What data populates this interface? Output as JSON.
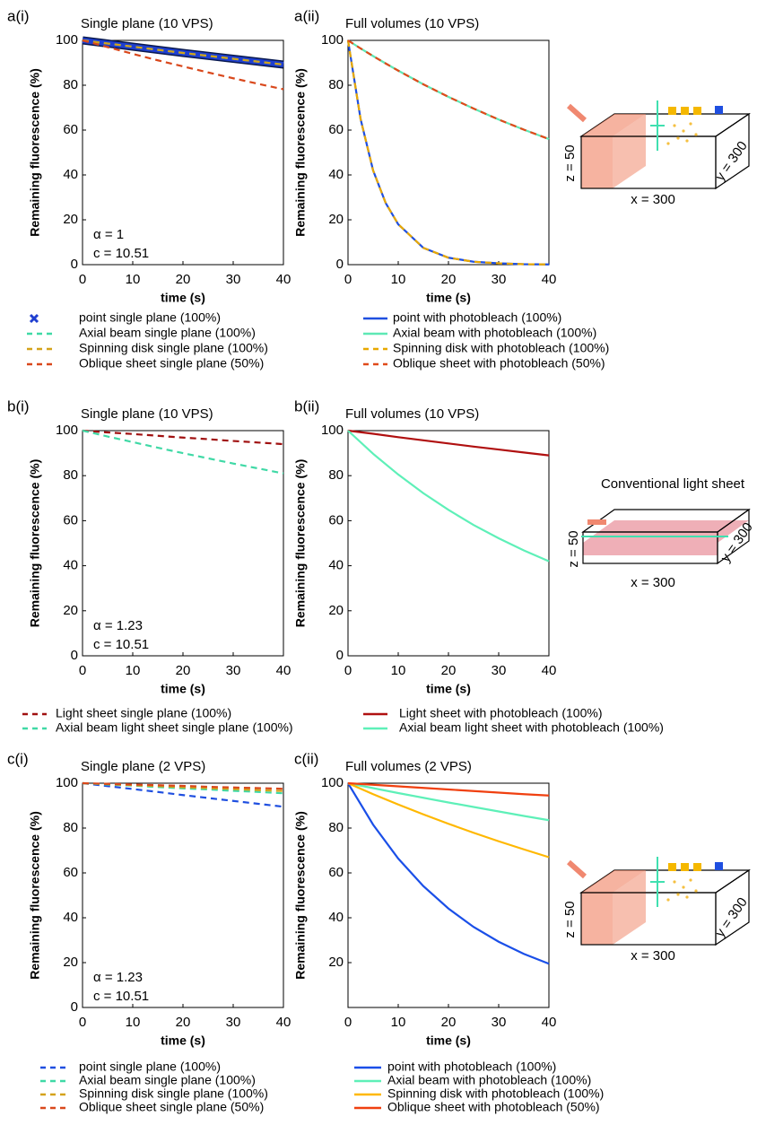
{
  "chart_data": [
    {
      "type": "line",
      "panel": "a(i)",
      "title": "Single plane (10 VPS)",
      "xlabel": "time (s)",
      "ylabel": "Remaining fluorescence (%)",
      "annotations": [
        "α = 1",
        "c = 10.51"
      ],
      "x": [
        0,
        5,
        10,
        15,
        20,
        25,
        30,
        35,
        40
      ],
      "xlim": [
        0,
        40
      ],
      "ylim": [
        0,
        100
      ],
      "xticks": [
        0,
        10,
        20,
        30,
        40
      ],
      "yticks": [
        0,
        20,
        40,
        60,
        80,
        100
      ],
      "series": [
        {
          "name": "point single plane (100%)",
          "color": "#1f3fd0",
          "linestyle": "solid",
          "marker": "x",
          "values": [
            100,
            98.6,
            97.2,
            95.8,
            94.4,
            93.1,
            91.8,
            90.5,
            89.2
          ]
        },
        {
          "name": "Axial beam single plane (100%)",
          "color": "#3fd9a6",
          "linestyle": "dashed",
          "values": [
            100,
            98.6,
            97.2,
            95.8,
            94.4,
            93.1,
            91.8,
            90.5,
            89.2
          ]
        },
        {
          "name": "Spinning disk single plane (100%)",
          "color": "#d4a21a",
          "linestyle": "dashed",
          "values": [
            100,
            98.6,
            97.2,
            95.8,
            94.4,
            93.1,
            91.8,
            90.5,
            89.2
          ]
        },
        {
          "name": "Oblique sheet single plane (50%)",
          "color": "#d9481c",
          "linestyle": "dashed",
          "values": [
            100,
            97,
            94,
            91.1,
            88.4,
            85.7,
            83.1,
            80.6,
            78.2
          ]
        }
      ]
    },
    {
      "type": "line",
      "panel": "a(ii)",
      "title": "Full volumes (10 VPS)",
      "xlabel": "time (s)",
      "ylabel": "Remaining fluorescence (%)",
      "x": [
        0,
        2.5,
        5,
        7.5,
        10,
        15,
        20,
        25,
        30,
        35,
        40
      ],
      "xlim": [
        0,
        40
      ],
      "ylim": [
        0,
        100
      ],
      "xticks": [
        0,
        10,
        20,
        30,
        40
      ],
      "yticks": [
        0,
        20,
        40,
        60,
        80,
        100
      ],
      "series": [
        {
          "name": "point with photobleach (100%)",
          "color": "#1f4fe0",
          "linestyle": "solid",
          "values": [
            100,
            65,
            42,
            27.5,
            18,
            7.5,
            3.1,
            1.3,
            0.6,
            0.2,
            0.1
          ]
        },
        {
          "name": "Axial beam with photobleach (100%)",
          "color": "#5de8b5",
          "linestyle": "solid",
          "values": [
            100,
            96.4,
            93,
            89.7,
            86.5,
            80.4,
            74.8,
            69.6,
            64.7,
            60.2,
            56
          ]
        },
        {
          "name": "Spinning disk with photobleach (100%)",
          "color": "#e8a800",
          "linestyle": "dashed",
          "values": [
            100,
            65,
            42,
            27.5,
            18,
            7.5,
            3.1,
            1.3,
            0.6,
            0.2,
            0.1
          ]
        },
        {
          "name": "Oblique sheet with photobleach (50%)",
          "color": "#e04a1a",
          "linestyle": "dashed",
          "values": [
            100,
            96.4,
            93,
            89.7,
            86.5,
            80.4,
            74.8,
            69.6,
            64.7,
            60.2,
            56
          ]
        }
      ]
    },
    {
      "type": "line",
      "panel": "b(i)",
      "title": "Single plane (10 VPS)",
      "xlabel": "time (s)",
      "ylabel": "Remaining fluorescence (%)",
      "annotations": [
        "α = 1.23",
        "c = 10.51"
      ],
      "x": [
        0,
        5,
        10,
        15,
        20,
        25,
        30,
        35,
        40
      ],
      "xlim": [
        0,
        40
      ],
      "ylim": [
        0,
        100
      ],
      "xticks": [
        0,
        10,
        20,
        30,
        40
      ],
      "yticks": [
        0,
        20,
        40,
        60,
        80,
        100
      ],
      "series": [
        {
          "name": "Light sheet single plane (100%)",
          "color": "#a01010",
          "linestyle": "dashed",
          "values": [
            100,
            99.2,
            98.5,
            97.7,
            96.9,
            96.2,
            95.4,
            94.7,
            94
          ]
        },
        {
          "name": "Axial beam light sheet single plane (100%)",
          "color": "#40d9a6",
          "linestyle": "dashed",
          "values": [
            100,
            97.4,
            94.9,
            92.4,
            90,
            87.7,
            85.4,
            83.2,
            81
          ]
        }
      ]
    },
    {
      "type": "line",
      "panel": "b(ii)",
      "title": "Full volumes (10 VPS)",
      "xlabel": "time (s)",
      "ylabel": "Remaining fluorescence (%)",
      "x": [
        0,
        5,
        10,
        15,
        20,
        25,
        30,
        35,
        40
      ],
      "xlim": [
        0,
        40
      ],
      "ylim": [
        0,
        100
      ],
      "xticks": [
        0,
        10,
        20,
        30,
        40
      ],
      "yticks": [
        0,
        20,
        40,
        60,
        80,
        100
      ],
      "series": [
        {
          "name": "Light sheet with photobleach (100%)",
          "color": "#b01010",
          "linestyle": "solid",
          "values": [
            100,
            98.6,
            97.1,
            95.7,
            94.3,
            92.9,
            91.6,
            90.3,
            89
          ]
        },
        {
          "name": "Axial beam light sheet with photobleach (100%)",
          "color": "#5ef0b8",
          "linestyle": "solid",
          "values": [
            100,
            89.7,
            80.5,
            72.2,
            64.8,
            58.1,
            52.2,
            46.8,
            42
          ]
        }
      ]
    },
    {
      "type": "line",
      "panel": "c(i)",
      "title": "Single plane (2 VPS)",
      "xlabel": "time (s)",
      "ylabel": "Remaining fluorescence (%)",
      "annotations": [
        "α = 1.23",
        "c = 10.51"
      ],
      "x": [
        0,
        5,
        10,
        15,
        20,
        25,
        30,
        35,
        40
      ],
      "xlim": [
        0,
        40
      ],
      "ylim": [
        0,
        100
      ],
      "xticks": [
        0,
        10,
        20,
        30,
        40
      ],
      "yticks": [
        0,
        20,
        40,
        60,
        80,
        100
      ],
      "series": [
        {
          "name": "point single plane (100%)",
          "color": "#1f4fe0",
          "linestyle": "dashed",
          "values": [
            100,
            98.7,
            97.4,
            96.1,
            94.7,
            93.4,
            92.1,
            90.8,
            89.5
          ]
        },
        {
          "name": "Axial beam single plane (100%)",
          "color": "#3fd9a6",
          "linestyle": "dashed",
          "values": [
            100,
            99.4,
            98.9,
            98.3,
            97.7,
            97.2,
            96.6,
            96.1,
            95.5
          ]
        },
        {
          "name": "Spinning disk single plane (100%)",
          "color": "#d4a21a",
          "linestyle": "dashed",
          "values": [
            100,
            99.6,
            99.1,
            98.7,
            98.2,
            97.8,
            97.4,
            96.9,
            96.5
          ]
        },
        {
          "name": "Oblique sheet single plane (50%)",
          "color": "#d9481c",
          "linestyle": "dashed",
          "values": [
            100,
            99.7,
            99.4,
            99.1,
            98.8,
            98.4,
            98.1,
            97.8,
            97.5
          ]
        }
      ]
    },
    {
      "type": "line",
      "panel": "c(ii)",
      "title": "Full volumes (2 VPS)",
      "xlabel": "time (s)",
      "ylabel": "Remaining fluorescence (%)",
      "x": [
        0,
        5,
        10,
        15,
        20,
        25,
        30,
        35,
        40
      ],
      "xlim": [
        0,
        40
      ],
      "ylim": [
        0,
        100
      ],
      "xticks": [
        0,
        10,
        20,
        30,
        40
      ],
      "yticks": [
        20,
        40,
        60,
        80,
        100
      ],
      "series": [
        {
          "name": "point with photobleach (100%)",
          "color": "#1a4fe8",
          "linestyle": "solid",
          "values": [
            100,
            81.5,
            66.4,
            54.1,
            44.1,
            35.9,
            29.3,
            23.9,
            19.5
          ]
        },
        {
          "name": "Axial beam with photobleach (100%)",
          "color": "#5ef0b8",
          "linestyle": "solid",
          "values": [
            100,
            97.8,
            95.6,
            93.5,
            91.4,
            89.4,
            87.4,
            85.4,
            83.5
          ]
        },
        {
          "name": "Spinning disk with photobleach (100%)",
          "color": "#ffb800",
          "linestyle": "solid",
          "values": [
            100,
            95.1,
            90.5,
            86.1,
            81.9,
            77.9,
            74.1,
            70.5,
            67
          ]
        },
        {
          "name": "Oblique sheet with photobleach (50%)",
          "color": "#f04010",
          "linestyle": "solid",
          "values": [
            100,
            99.3,
            98.6,
            97.9,
            97.2,
            96.5,
            95.8,
            95.1,
            94.5
          ]
        }
      ]
    }
  ],
  "diagrams": [
    {
      "z": "z = 50",
      "x": "x = 300",
      "y": "y = 300"
    },
    {
      "title": "Conventional light sheet",
      "z": "z = 50",
      "x": "x = 300",
      "y": "y = 300"
    },
    {
      "z": "z = 50",
      "x": "x = 300",
      "y": "y = 300"
    }
  ]
}
